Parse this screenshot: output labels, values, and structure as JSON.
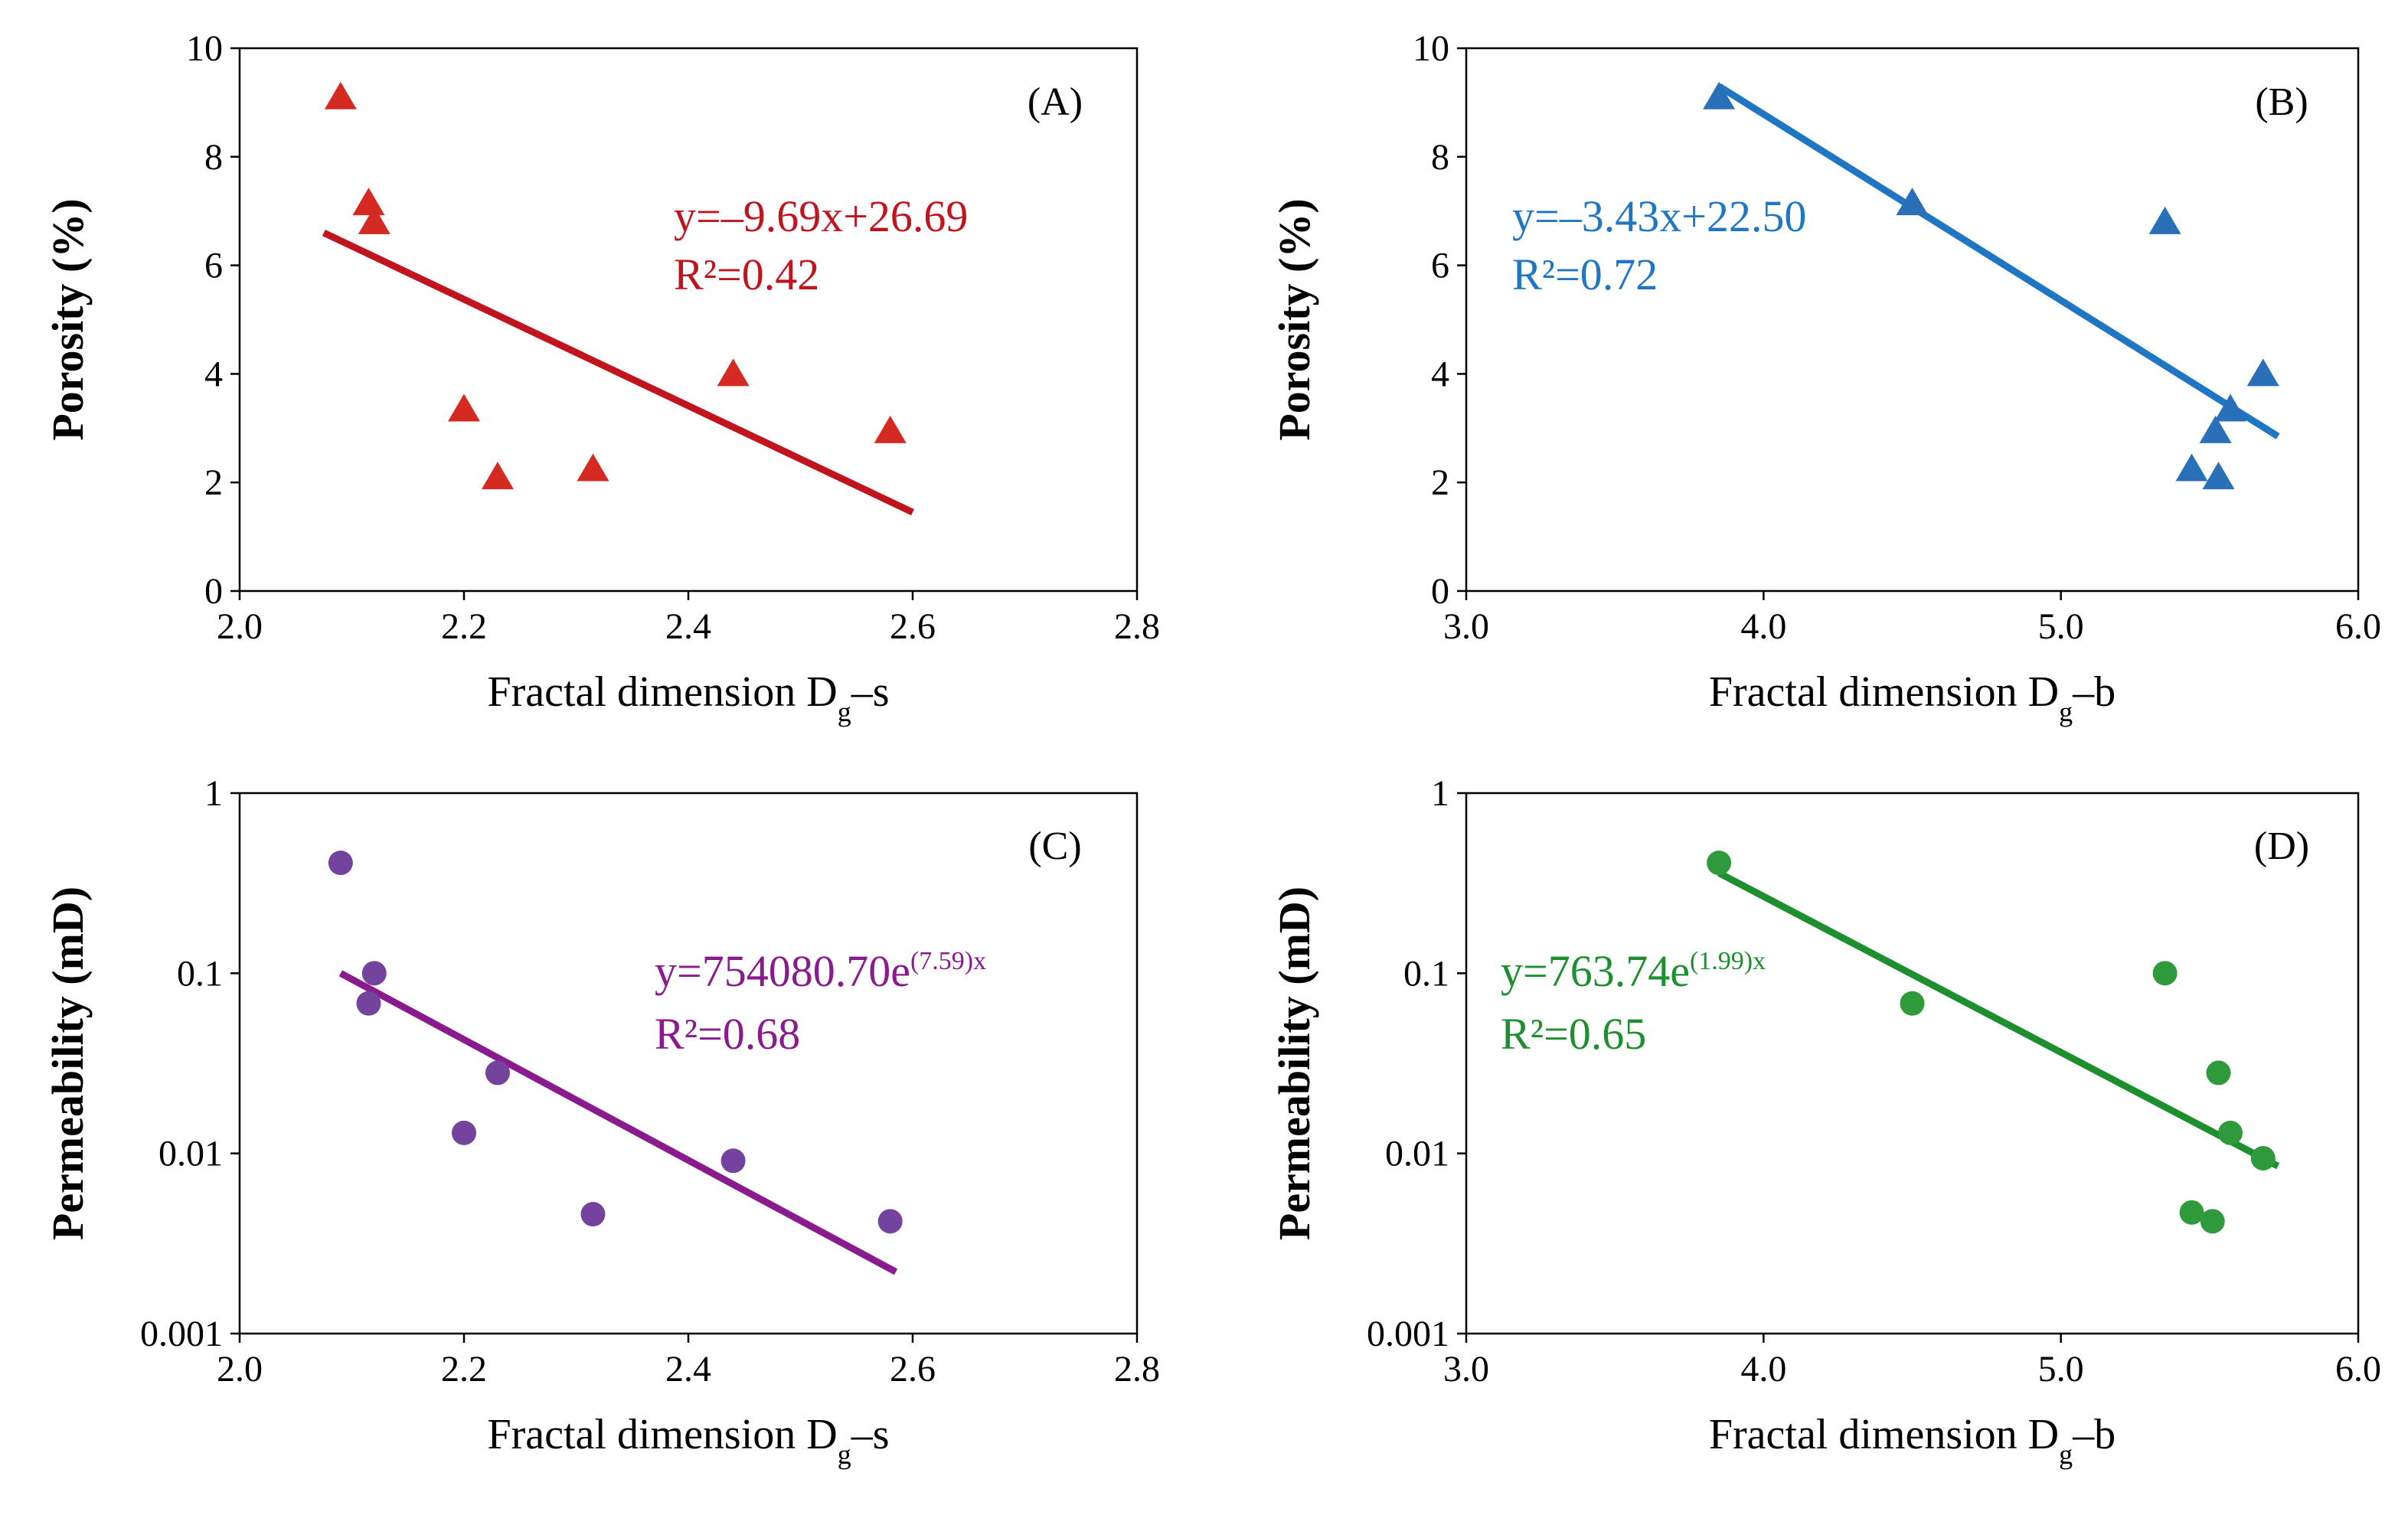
{
  "chart_data": [
    {
      "id": "A",
      "type": "scatter",
      "panel_label": "(A)",
      "xlabel_pre": "Fractal dimension D",
      "xlabel_sub": "g",
      "xlabel_post": "–s",
      "ylabel": "Porosity (%)",
      "xlim": [
        2.0,
        2.8
      ],
      "ylim": [
        0,
        10
      ],
      "yscale": "linear",
      "xticks": [
        "2.0",
        "2.2",
        "2.4",
        "2.6",
        "2.8"
      ],
      "xtick_values": [
        2.0,
        2.2,
        2.4,
        2.6,
        2.8
      ],
      "yticks": [
        "0",
        "2",
        "4",
        "6",
        "8",
        "10"
      ],
      "ytick_values": [
        0,
        2,
        4,
        6,
        8,
        10
      ],
      "marker": "triangle",
      "color": "#d42a22",
      "line_color": "#c0141e",
      "points": [
        {
          "x": 2.09,
          "y": 9.1
        },
        {
          "x": 2.115,
          "y": 7.15
        },
        {
          "x": 2.12,
          "y": 6.8
        },
        {
          "x": 2.2,
          "y": 3.35
        },
        {
          "x": 2.23,
          "y": 2.1
        },
        {
          "x": 2.315,
          "y": 2.25
        },
        {
          "x": 2.44,
          "y": 4.0
        },
        {
          "x": 2.58,
          "y": 2.95
        }
      ],
      "fit": {
        "x0": 2.075,
        "x1": 2.6,
        "y0": 6.6,
        "y1": 1.45
      },
      "equation": {
        "main": "y=–9.69x+26.69",
        "r2": "R²=0.42"
      }
    },
    {
      "id": "B",
      "type": "scatter",
      "panel_label": "(B)",
      "xlabel_pre": "Fractal dimension D",
      "xlabel_sub": "g",
      "xlabel_post": "–b",
      "ylabel": "Porosity (%)",
      "xlim": [
        3.0,
        6.0
      ],
      "ylim": [
        0,
        10
      ],
      "yscale": "linear",
      "xticks": [
        "3.0",
        "4.0",
        "5.0",
        "6.0"
      ],
      "xtick_values": [
        3.0,
        4.0,
        5.0,
        6.0
      ],
      "yticks": [
        "0",
        "2",
        "4",
        "6",
        "8",
        "10"
      ],
      "ytick_values": [
        0,
        2,
        4,
        6,
        8,
        10
      ],
      "marker": "triangle",
      "color": "#2a70b8",
      "line_color": "#1f76c2",
      "points": [
        {
          "x": 3.85,
          "y": 9.1
        },
        {
          "x": 4.5,
          "y": 7.15
        },
        {
          "x": 5.35,
          "y": 6.8
        },
        {
          "x": 5.57,
          "y": 3.35
        },
        {
          "x": 5.52,
          "y": 2.95
        },
        {
          "x": 5.44,
          "y": 2.25
        },
        {
          "x": 5.53,
          "y": 2.1
        },
        {
          "x": 5.68,
          "y": 4.0
        }
      ],
      "fit": {
        "x0": 3.85,
        "x1": 5.73,
        "y0": 9.3,
        "y1": 2.85
      },
      "equation": {
        "main": "y=–3.43x+22.50",
        "r2": "R²=0.72"
      }
    },
    {
      "id": "C",
      "type": "scatter",
      "panel_label": "(C)",
      "xlabel_pre": "Fractal dimension D",
      "xlabel_sub": "g",
      "xlabel_post": "–s",
      "ylabel": "Permeability (mD)",
      "xlim": [
        2.0,
        2.8
      ],
      "ylim": [
        0.001,
        1
      ],
      "yscale": "log",
      "xticks": [
        "2.0",
        "2.2",
        "2.4",
        "2.6",
        "2.8"
      ],
      "xtick_values": [
        2.0,
        2.2,
        2.4,
        2.6,
        2.8
      ],
      "yticks": [
        "0.001",
        "0.01",
        "0.1",
        "1"
      ],
      "ytick_values": [
        0.001,
        0.01,
        0.1,
        1
      ],
      "marker": "circle",
      "color": "#74439e",
      "line_color": "#8a1b8e",
      "points": [
        {
          "x": 2.09,
          "y": 0.41
        },
        {
          "x": 2.115,
          "y": 0.068
        },
        {
          "x": 2.12,
          "y": 0.1
        },
        {
          "x": 2.2,
          "y": 0.013
        },
        {
          "x": 2.23,
          "y": 0.028
        },
        {
          "x": 2.315,
          "y": 0.0046
        },
        {
          "x": 2.44,
          "y": 0.0091
        },
        {
          "x": 2.58,
          "y": 0.0042
        }
      ],
      "fit": {
        "x0": 2.09,
        "x1": 2.585,
        "y0": 0.1,
        "y1": 0.0022
      },
      "equation": {
        "main": "y=754080.70e",
        "sup": "(7.59)x",
        "r2": "R²=0.68"
      }
    },
    {
      "id": "D",
      "type": "scatter",
      "panel_label": "(D)",
      "xlabel_pre": "Fractal dimension D",
      "xlabel_sub": "g",
      "xlabel_post": "–b",
      "ylabel": "Permeability (mD)",
      "xlim": [
        3.0,
        6.0
      ],
      "ylim": [
        0.001,
        1
      ],
      "yscale": "log",
      "xticks": [
        "3.0",
        "4.0",
        "5.0",
        "6.0"
      ],
      "xtick_values": [
        3.0,
        4.0,
        5.0,
        6.0
      ],
      "yticks": [
        "0.001",
        "0.01",
        "0.1",
        "1"
      ],
      "ytick_values": [
        0.001,
        0.01,
        0.1,
        1
      ],
      "marker": "circle",
      "color": "#2f9a3c",
      "line_color": "#1e8f2e",
      "points": [
        {
          "x": 3.85,
          "y": 0.41
        },
        {
          "x": 4.5,
          "y": 0.068
        },
        {
          "x": 5.35,
          "y": 0.1
        },
        {
          "x": 5.53,
          "y": 0.028
        },
        {
          "x": 5.57,
          "y": 0.013
        },
        {
          "x": 5.68,
          "y": 0.0094
        },
        {
          "x": 5.44,
          "y": 0.0047
        },
        {
          "x": 5.51,
          "y": 0.0042
        }
      ],
      "fit": {
        "x0": 3.85,
        "x1": 5.73,
        "y0": 0.36,
        "y1": 0.0085
      },
      "equation": {
        "main": "y=763.74e",
        "sup": "(1.99)x",
        "r2": "R²=0.65"
      }
    }
  ]
}
